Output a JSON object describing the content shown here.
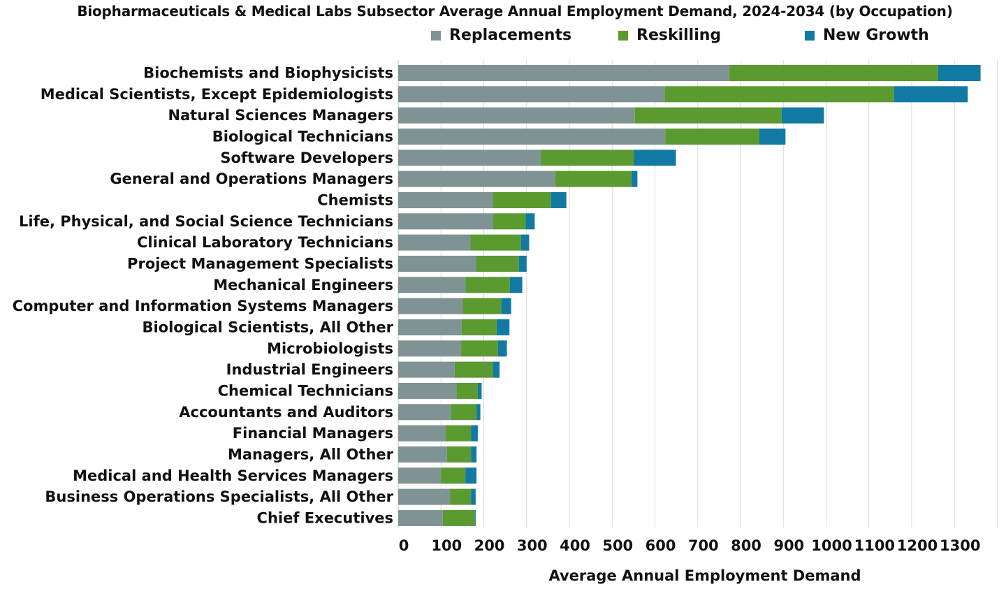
{
  "chart_data": {
    "type": "bar",
    "orientation": "horizontal",
    "stacked": true,
    "title": "Biopharmaceuticals & Medical Labs Subsector Average Annual Employment Demand, 2024-2034 (by Occupation)",
    "xlabel": "Average Annual Employment Demand",
    "ylabel": "",
    "xlim": [
      0,
      1400
    ],
    "xticks": [
      0,
      100,
      200,
      300,
      400,
      500,
      600,
      700,
      800,
      900,
      1000,
      1100,
      1200,
      1300
    ],
    "grid": true,
    "legend_position": "top",
    "categories": [
      "Biochemists and Biophysicists",
      "Medical Scientists, Except Epidemiologists",
      "Natural Sciences Managers",
      "Biological Technicians",
      "Software Developers",
      "General and Operations Managers",
      "Chemists",
      "Life, Physical, and Social Science Technicians",
      "Clinical Laboratory Technicians",
      "Project Management Specialists",
      "Mechanical Engineers",
      "Computer and Information Systems Managers",
      "Biological Scientists, All Other",
      "Microbiologists",
      "Industrial Engineers",
      "Chemical Technicians",
      "Accountants and Auditors",
      "Financial Managers",
      "Managers, All Other",
      "Medical and Health Services Managers",
      "Business Operations Specialists, All Other",
      "Chief Executives"
    ],
    "series": [
      {
        "name": "Replacements",
        "color": "#7f9394",
        "values": [
          774,
          623,
          553,
          624,
          333,
          367,
          221,
          222,
          169,
          182,
          157,
          151,
          148,
          147,
          132,
          136,
          123,
          111,
          114,
          100,
          121,
          104
        ]
      },
      {
        "name": "Reskilling",
        "color": "#5a9a30",
        "values": [
          488,
          536,
          343,
          220,
          218,
          178,
          136,
          76,
          118,
          100,
          104,
          90,
          82,
          86,
          89,
          50,
          60,
          59,
          56,
          57,
          49,
          75
        ]
      },
      {
        "name": "New Growth",
        "color": "#127aa2",
        "values": [
          99,
          172,
          99,
          61,
          98,
          14,
          36,
          21,
          19,
          18,
          29,
          23,
          30,
          21,
          16,
          9,
          9,
          16,
          13,
          26,
          11,
          2
        ]
      }
    ]
  }
}
